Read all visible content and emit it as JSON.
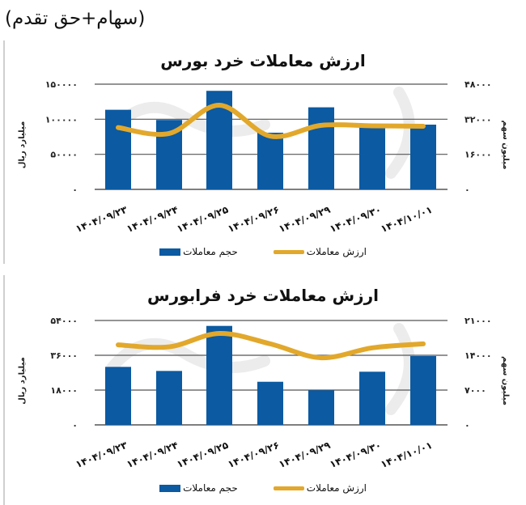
{
  "page": {
    "title": "(سهام+حق تقدم)"
  },
  "colors": {
    "bar": "#0b5aa2",
    "line": "#e2a82b",
    "grid": "#555555"
  },
  "chart_data": [
    {
      "type": "bar+line",
      "title": "ارزش معاملات خرد بورس",
      "categories": [
        "۱۴۰۴/۰۹/۲۳",
        "۱۴۰۴/۰۹/۲۴",
        "۱۴۰۴/۰۹/۲۵",
        "۱۴۰۴/۰۹/۲۶",
        "۱۴۰۴/۰۹/۲۹",
        "۱۴۰۴/۰۹/۳۰",
        "۱۴۰۴/۱۰/۰۱"
      ],
      "categories_latin": [
        "1404/09/23",
        "1404/09/24",
        "1404/09/25",
        "1404/09/26",
        "1404/09/29",
        "1404/09/30",
        "1404/10/01"
      ],
      "series": [
        {
          "name": "ارزش معاملات",
          "kind": "line",
          "axis": "left",
          "unit": "میلیارد ریال",
          "values": [
            113500,
            99000,
            140500,
            80800,
            117000,
            91200,
            92300
          ]
        },
        {
          "name": "حجم معاملات",
          "kind": "bar",
          "axis": "right",
          "unit": "میلیون سهم",
          "values": [
            28200,
            25500,
            38400,
            24300,
            29200,
            29000,
            28800
          ]
        }
      ],
      "bars_series_index_note": "Bars are drawn from left-axis values; line from right-axis values",
      "bar_values": [
        113500,
        99000,
        140500,
        80800,
        117000,
        91200,
        92300
      ],
      "line_values": [
        28200,
        25500,
        38400,
        24300,
        29200,
        29000,
        28800
      ],
      "ylabel_left": "میلیارد ریال",
      "ylabel_right": "میلیون سهم",
      "ylim_left": [
        0,
        150000
      ],
      "ylim_right": [
        0,
        48000
      ],
      "yticks_left": [
        "۰",
        "۵۰۰۰۰",
        "۱۰۰۰۰۰",
        "۱۵۰۰۰۰"
      ],
      "yticks_right": [
        "۰",
        "۱۶۰۰۰",
        "۳۲۰۰۰",
        "۴۸۰۰۰"
      ],
      "grid": true,
      "legend": [
        "ارزش معاملات",
        "حجم معاملات"
      ],
      "legend_position": "bottom"
    },
    {
      "type": "bar+line",
      "title": "ارزش معاملات خرد فرابورس",
      "categories": [
        "۱۴۰۴/۰۹/۲۳",
        "۱۴۰۴/۰۹/۲۴",
        "۱۴۰۴/۰۹/۲۵",
        "۱۴۰۴/۰۹/۲۶",
        "۱۴۰۴/۰۹/۲۹",
        "۱۴۰۴/۰۹/۳۰",
        "۱۴۰۴/۱۰/۰۱"
      ],
      "categories_latin": [
        "1404/09/23",
        "1404/09/24",
        "1404/09/25",
        "1404/09/26",
        "1404/09/29",
        "1404/09/30",
        "1404/10/01"
      ],
      "series": [
        {
          "name": "ارزش معاملات",
          "kind": "line",
          "axis": "right",
          "unit": "میلیون سهم",
          "values": [
            16100,
            15700,
            18400,
            16300,
            13500,
            15500,
            16300
          ]
        },
        {
          "name": "حجم معاملات",
          "kind": "bar",
          "axis": "left",
          "unit": "میلیارد ریال",
          "values": [
            30000,
            27900,
            51200,
            22300,
            17900,
            27500,
            35600
          ]
        }
      ],
      "bar_values": [
        30000,
        27900,
        51200,
        22300,
        17900,
        27500,
        35600
      ],
      "line_values": [
        16100,
        15700,
        18400,
        16300,
        13500,
        15500,
        16300
      ],
      "ylabel_left": "میلیارد ریال",
      "ylabel_right": "میلیون سهم",
      "ylim_left": [
        0,
        54000
      ],
      "ylim_right": [
        0,
        21000
      ],
      "yticks_left": [
        "۰",
        "۱۸۰۰۰",
        "۳۶۰۰۰",
        "۵۴۰۰۰"
      ],
      "yticks_right": [
        "۰",
        "۷۰۰۰",
        "۱۴۰۰۰",
        "۲۱۰۰۰"
      ],
      "grid": true,
      "legend": [
        "ارزش معاملات",
        "حجم معاملات"
      ],
      "legend_position": "bottom"
    }
  ]
}
